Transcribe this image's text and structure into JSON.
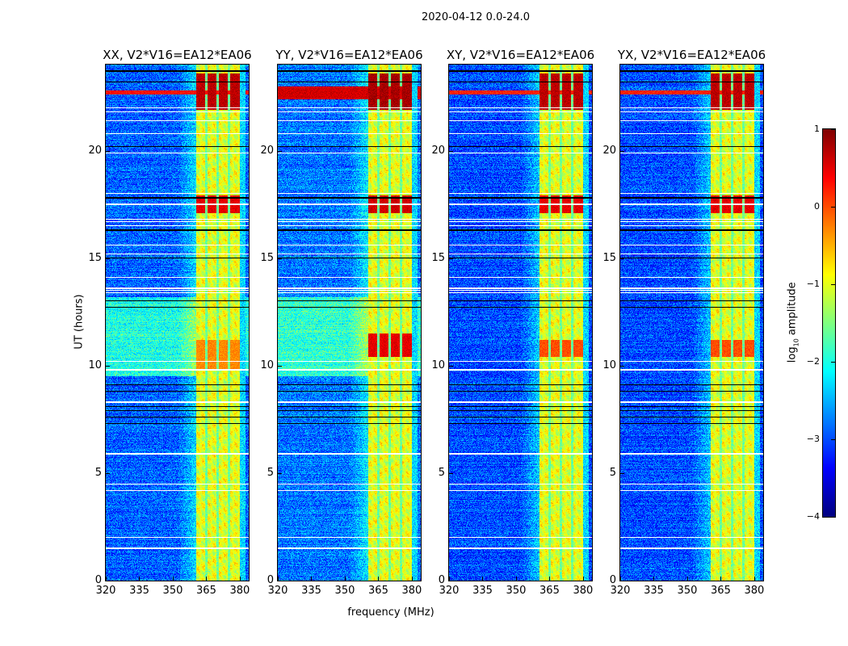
{
  "chart_data": {
    "type": "heatmap",
    "title": "2020-04-12 0.0-24.0",
    "xlabel": "frequency (MHz)",
    "ylabel": "UT (hours)",
    "xlim": [
      320,
      384
    ],
    "ylim": [
      0,
      24
    ],
    "xticks": [
      320,
      335,
      350,
      365,
      380
    ],
    "yticks": [
      0,
      5,
      10,
      15,
      20
    ],
    "colormap": "jet",
    "colorbar": {
      "label_prefix": "log",
      "label_sub": "10",
      "label_suffix": " amplitude",
      "range": [
        -4,
        1
      ],
      "ticks": [
        1,
        0,
        -1,
        -2,
        -3,
        -4
      ]
    },
    "rfi_band_mhz": [
      360.5,
      380
    ],
    "rfi_gaps_mhz": [
      365.1,
      370.2,
      375.2
    ],
    "flagged_white_hours": [
      1.5,
      2.0,
      4.2,
      4.5,
      5.9,
      8.3,
      9.8,
      10.2,
      13.4,
      13.5,
      13.6,
      14.1,
      15.2,
      15.6,
      16.5,
      16.7,
      16.8,
      17.5,
      18.0,
      19.9,
      20.8,
      21.4,
      21.8,
      22.0
    ],
    "flagged_black_hours": [
      7.3,
      7.6,
      7.9,
      8.1,
      8.8,
      9.1,
      12.7,
      13.0,
      15.0,
      16.3,
      17.8,
      20.2,
      23.2,
      23.7
    ],
    "panels": [
      {
        "title": "XX, V2*V16=EA12*EA06",
        "base": -2.9,
        "line_hours": [
          22.6,
          22.8
        ],
        "line_level": 0.3,
        "green_hours": [
          9.5,
          13.2
        ],
        "band_events": [
          {
            "hours": [
              21.9,
              23.6
            ],
            "level": 0.7
          },
          {
            "hours": [
              17.1,
              17.9
            ],
            "level": 0.5
          },
          {
            "hours": [
              9.8,
              11.2
            ],
            "level": -0.3
          }
        ]
      },
      {
        "title": "YY, V2*V16=EA12*EA06",
        "base": -2.8,
        "line_hours": [
          22.4,
          23.0
        ],
        "line_level": 0.6,
        "green_hours": [
          9.5,
          13.2
        ],
        "band_events": [
          {
            "hours": [
              21.9,
              23.6
            ],
            "level": 0.8
          },
          {
            "hours": [
              17.1,
              17.9
            ],
            "level": 0.6
          },
          {
            "hours": [
              10.4,
              11.5
            ],
            "level": 0.5
          }
        ]
      },
      {
        "title": "XY, V2*V16=EA12*EA06",
        "base": -3.0,
        "line_hours": [
          22.6,
          22.8
        ],
        "line_level": 0.2,
        "green_hours": null,
        "band_events": [
          {
            "hours": [
              21.9,
              23.6
            ],
            "level": 0.7
          },
          {
            "hours": [
              17.1,
              17.9
            ],
            "level": 0.5
          },
          {
            "hours": [
              10.4,
              11.2
            ],
            "level": 0.0
          }
        ]
      },
      {
        "title": "YX, V2*V16=EA12*EA06",
        "base": -3.0,
        "line_hours": [
          22.6,
          22.8
        ],
        "line_level": 0.2,
        "green_hours": null,
        "band_events": [
          {
            "hours": [
              21.9,
              23.6
            ],
            "level": 0.7
          },
          {
            "hours": [
              17.1,
              17.9
            ],
            "level": 0.5
          },
          {
            "hours": [
              10.4,
              11.2
            ],
            "level": 0.0
          }
        ]
      }
    ]
  }
}
